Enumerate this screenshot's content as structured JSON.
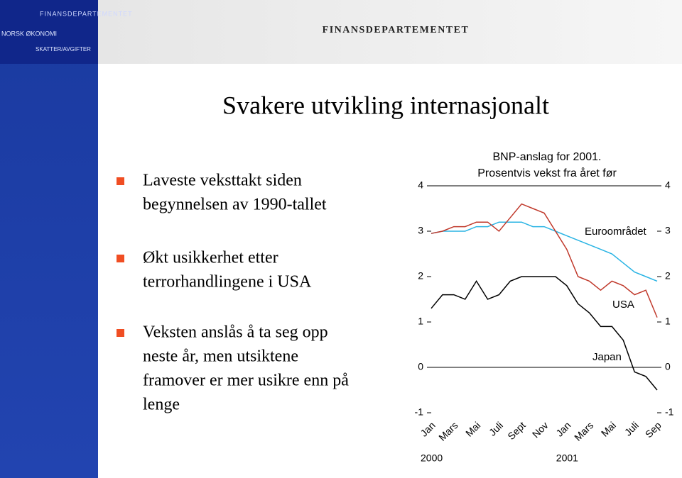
{
  "header": {
    "logo": "FINANSDEPARTEMENTET",
    "menu": [
      "NORSK ØKONOMI",
      "SKATTER/AVGIFTER"
    ],
    "ministry": "FINANSDEPARTEMENTET"
  },
  "slide": {
    "title": "Svakere utvikling internasjonalt",
    "bullets": [
      [
        "Laveste veksttakt siden",
        "begynnelsen av 1990-tallet"
      ],
      [
        "Økt usikkerhet etter",
        "terrorhandlingene i USA"
      ],
      [
        "Veksten anslås å ta seg opp",
        "neste år, men utsiktene",
        "framover er mer usikre enn på",
        "lenge"
      ]
    ]
  },
  "chart_data": {
    "type": "line",
    "title": [
      "BNP-anslag for 2001.",
      "Prosentvis vekst fra året før"
    ],
    "categories": [
      "Jan",
      null,
      "Mars",
      null,
      "Mai",
      null,
      "Juli",
      null,
      "Sept",
      null,
      "Nov",
      null,
      "Jan",
      null,
      "Mars",
      null,
      "Mai",
      null,
      "Juli",
      null,
      "Sep"
    ],
    "annotations": [
      "2000",
      "2001"
    ],
    "series": [
      {
        "name": "Euroområdet",
        "color": "#2ab4e4",
        "values": [
          2.95,
          3.0,
          3.0,
          3.0,
          3.1,
          3.1,
          3.2,
          3.2,
          3.2,
          3.1,
          3.1,
          3.0,
          2.9,
          2.8,
          2.7,
          2.6,
          2.5,
          2.3,
          2.1,
          2.0,
          1.9
        ]
      },
      {
        "name": "USA",
        "color": "#c0392b",
        "values": [
          2.95,
          3.0,
          3.1,
          3.1,
          3.2,
          3.2,
          3.0,
          3.3,
          3.6,
          3.5,
          3.4,
          3.0,
          2.6,
          2.0,
          1.9,
          1.7,
          1.9,
          1.8,
          1.6,
          1.7,
          1.1
        ]
      },
      {
        "name": "Japan",
        "color": "#000000",
        "values": [
          1.3,
          1.6,
          1.6,
          1.5,
          1.9,
          1.5,
          1.6,
          1.9,
          2.0,
          2.0,
          2.0,
          2.0,
          1.8,
          1.4,
          1.2,
          0.9,
          0.9,
          0.6,
          -0.1,
          -0.2,
          -0.5
        ]
      }
    ],
    "ylim": [
      -1,
      4
    ],
    "yticks": [
      -1,
      0,
      1,
      2,
      3,
      4
    ]
  }
}
